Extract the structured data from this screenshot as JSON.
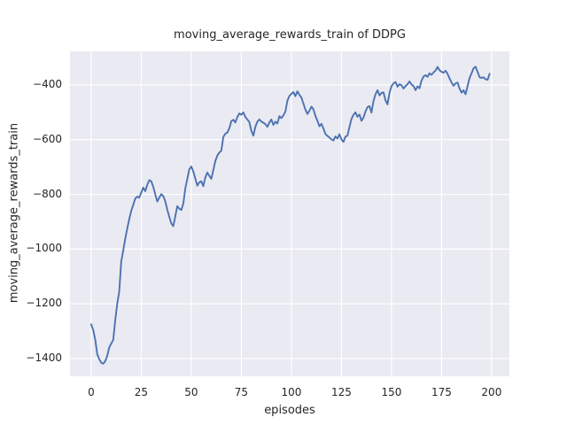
{
  "chart_data": {
    "type": "line",
    "title": "moving_average_rewards_train of DDPG",
    "xlabel": "episodes",
    "ylabel": "moving_average_rewards_train",
    "legend": null,
    "grid": true,
    "style": "seaborn-darkgrid",
    "axes_bg_color": "#eaeaf2",
    "grid_color": "#ffffff",
    "line_color": "#4c72b0",
    "text_color": "#262626",
    "xlim": [
      -10.6,
      208.9
    ],
    "ylim": [
      -1465,
      -277
    ],
    "x_ticks": [
      0,
      25,
      50,
      75,
      100,
      125,
      150,
      175,
      200
    ],
    "x_tick_labels": [
      "0",
      "25",
      "50",
      "75",
      "100",
      "125",
      "150",
      "175",
      "200"
    ],
    "y_ticks": [
      -400,
      -600,
      -800,
      -1000,
      -1200,
      -1400
    ],
    "y_tick_labels": [
      "−400",
      "−600",
      "−800",
      "−1000",
      "−1200",
      "−1400"
    ],
    "series": [
      {
        "name": "moving_average_rewards_train",
        "x_start": 0,
        "x_step": 1,
        "values": [
          -1275,
          -1296,
          -1330,
          -1384,
          -1402,
          -1415,
          -1419,
          -1410,
          -1390,
          -1360,
          -1345,
          -1332,
          -1260,
          -1200,
          -1155,
          -1045,
          -1005,
          -962,
          -925,
          -890,
          -860,
          -838,
          -815,
          -808,
          -812,
          -793,
          -775,
          -788,
          -765,
          -748,
          -752,
          -772,
          -800,
          -826,
          -812,
          -799,
          -806,
          -825,
          -856,
          -882,
          -906,
          -916,
          -880,
          -843,
          -852,
          -857,
          -834,
          -778,
          -743,
          -708,
          -698,
          -716,
          -742,
          -768,
          -756,
          -752,
          -770,
          -738,
          -720,
          -732,
          -743,
          -711,
          -678,
          -658,
          -647,
          -640,
          -590,
          -578,
          -574,
          -558,
          -532,
          -527,
          -537,
          -517,
          -504,
          -509,
          -500,
          -517,
          -526,
          -536,
          -568,
          -585,
          -553,
          -534,
          -526,
          -534,
          -538,
          -543,
          -553,
          -537,
          -526,
          -546,
          -534,
          -541,
          -514,
          -521,
          -511,
          -497,
          -457,
          -440,
          -432,
          -426,
          -441,
          -423,
          -436,
          -446,
          -468,
          -490,
          -506,
          -494,
          -479,
          -489,
          -513,
          -531,
          -551,
          -542,
          -559,
          -579,
          -586,
          -592,
          -599,
          -603,
          -588,
          -596,
          -580,
          -599,
          -608,
          -589,
          -585,
          -554,
          -524,
          -509,
          -500,
          -516,
          -508,
          -531,
          -519,
          -497,
          -481,
          -477,
          -501,
          -459,
          -434,
          -419,
          -438,
          -429,
          -427,
          -456,
          -471,
          -429,
          -404,
          -394,
          -389,
          -406,
          -397,
          -401,
          -413,
          -404,
          -397,
          -387,
          -398,
          -404,
          -419,
          -405,
          -412,
          -384,
          -369,
          -364,
          -370,
          -357,
          -363,
          -354,
          -347,
          -334,
          -346,
          -352,
          -355,
          -348,
          -359,
          -376,
          -391,
          -403,
          -394,
          -391,
          -413,
          -428,
          -419,
          -434,
          -404,
          -374,
          -357,
          -339,
          -333,
          -352,
          -372,
          -374,
          -372,
          -379,
          -381,
          -359
        ]
      }
    ]
  }
}
